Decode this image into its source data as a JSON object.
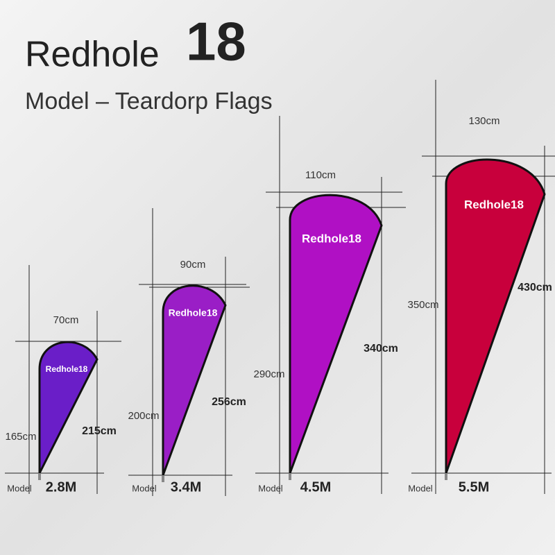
{
  "header": {
    "brand": "Redhole",
    "number": "18",
    "subtitle": "Model – Teardorp Flags"
  },
  "flags": [
    {
      "width": "70cm",
      "left_height": "165cm",
      "total_height": "215cm",
      "label": "Redhole18",
      "model": "Model",
      "size": "2.8M"
    },
    {
      "width": "90cm",
      "left_height": "200cm",
      "total_height": "256cm",
      "label": "Redhole18",
      "model": "Model",
      "size": "3.4M"
    },
    {
      "width": "110cm",
      "left_height": "290cm",
      "total_height": "340cm",
      "label": "Redhole18",
      "model": "Model",
      "size": "4.5M"
    },
    {
      "width": "130cm",
      "left_height": "350cm",
      "total_height": "430cm",
      "label": "Redhole18",
      "model": "Model",
      "size": "5.5M"
    }
  ]
}
